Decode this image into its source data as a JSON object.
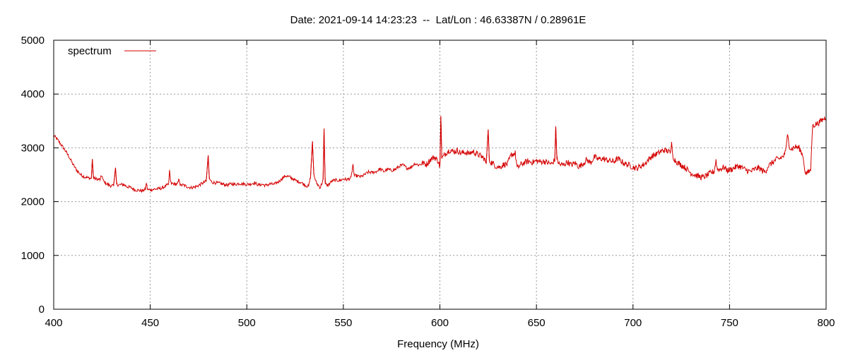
{
  "chart_data": {
    "type": "line",
    "title": "Date: 2021-09-14 14:23:23  --  Lat/Lon : 46.63387N / 0.28961E",
    "xlabel": "Frequency (MHz)",
    "ylabel": "",
    "xlim": [
      400,
      800
    ],
    "ylim": [
      0,
      5000
    ],
    "xticks": [
      400,
      450,
      500,
      550,
      600,
      650,
      700,
      750,
      800
    ],
    "yticks": [
      0,
      1000,
      2000,
      3000,
      4000,
      5000
    ],
    "grid": true,
    "legend_position": "top-left",
    "color": "#d40000",
    "series": [
      {
        "name": "spectrum",
        "points": [
          [
            400,
            3230
          ],
          [
            402,
            3150
          ],
          [
            404,
            3050
          ],
          [
            406,
            2950
          ],
          [
            408,
            2830
          ],
          [
            410,
            2690
          ],
          [
            412,
            2580
          ],
          [
            414,
            2500
          ],
          [
            416,
            2460
          ],
          [
            418,
            2440
          ],
          [
            419.5,
            2430
          ],
          [
            420,
            2790
          ],
          [
            420.6,
            2440
          ],
          [
            422,
            2420
          ],
          [
            424,
            2410
          ],
          [
            425,
            2490
          ],
          [
            425.6,
            2390
          ],
          [
            427,
            2340
          ],
          [
            429,
            2300
          ],
          [
            431,
            2290
          ],
          [
            432,
            2630
          ],
          [
            432.6,
            2320
          ],
          [
            434,
            2310
          ],
          [
            436,
            2320
          ],
          [
            438,
            2280
          ],
          [
            440,
            2260
          ],
          [
            442,
            2220
          ],
          [
            444,
            2210
          ],
          [
            446,
            2200
          ],
          [
            447.5,
            2230
          ],
          [
            448,
            2350
          ],
          [
            448.6,
            2220
          ],
          [
            450,
            2220
          ],
          [
            452,
            2230
          ],
          [
            454,
            2240
          ],
          [
            456,
            2250
          ],
          [
            458,
            2290
          ],
          [
            459.5,
            2320
          ],
          [
            460,
            2590
          ],
          [
            460.6,
            2340
          ],
          [
            462,
            2330
          ],
          [
            464,
            2320
          ],
          [
            465,
            2420
          ],
          [
            465.6,
            2300
          ],
          [
            467,
            2310
          ],
          [
            469,
            2280
          ],
          [
            471,
            2260
          ],
          [
            473,
            2270
          ],
          [
            475,
            2300
          ],
          [
            477,
            2340
          ],
          [
            479,
            2380
          ],
          [
            480,
            2860
          ],
          [
            480.6,
            2420
          ],
          [
            482,
            2360
          ],
          [
            484,
            2350
          ],
          [
            486,
            2340
          ],
          [
            488,
            2320
          ],
          [
            490,
            2310
          ],
          [
            492,
            2330
          ],
          [
            494,
            2320
          ],
          [
            496,
            2340
          ],
          [
            498,
            2330
          ],
          [
            500,
            2320
          ],
          [
            502,
            2330
          ],
          [
            504,
            2350
          ],
          [
            506,
            2310
          ],
          [
            508,
            2320
          ],
          [
            510,
            2300
          ],
          [
            512,
            2330
          ],
          [
            514,
            2320
          ],
          [
            516,
            2360
          ],
          [
            518,
            2420
          ],
          [
            520,
            2480
          ],
          [
            522,
            2460
          ],
          [
            524,
            2420
          ],
          [
            526,
            2380
          ],
          [
            528,
            2360
          ],
          [
            530,
            2310
          ],
          [
            532,
            2280
          ],
          [
            533,
            2460
          ],
          [
            534,
            3120
          ],
          [
            534.7,
            2500
          ],
          [
            536,
            2350
          ],
          [
            538,
            2260
          ],
          [
            539.5,
            2400
          ],
          [
            540,
            3360
          ],
          [
            540.6,
            2330
          ],
          [
            542,
            2300
          ],
          [
            544,
            2380
          ],
          [
            546,
            2400
          ],
          [
            548,
            2390
          ],
          [
            550,
            2420
          ],
          [
            552,
            2410
          ],
          [
            554,
            2440
          ],
          [
            555,
            2700
          ],
          [
            555.6,
            2480
          ],
          [
            557,
            2480
          ],
          [
            559,
            2460
          ],
          [
            561,
            2500
          ],
          [
            563,
            2550
          ],
          [
            565,
            2540
          ],
          [
            567,
            2560
          ],
          [
            569,
            2610
          ],
          [
            571,
            2560
          ],
          [
            573,
            2600
          ],
          [
            575,
            2580
          ],
          [
            577,
            2600
          ],
          [
            579,
            2660
          ],
          [
            581,
            2680
          ],
          [
            583,
            2620
          ],
          [
            585,
            2640
          ],
          [
            587,
            2710
          ],
          [
            589,
            2680
          ],
          [
            591,
            2720
          ],
          [
            593,
            2690
          ],
          [
            595,
            2780
          ],
          [
            597,
            2830
          ],
          [
            599,
            2760
          ],
          [
            600,
            2650
          ],
          [
            600.5,
            3590
          ],
          [
            601,
            2800
          ],
          [
            603,
            2900
          ],
          [
            605,
            2960
          ],
          [
            607,
            2930
          ],
          [
            609,
            2950
          ],
          [
            611,
            2900
          ],
          [
            613,
            2920
          ],
          [
            615,
            2890
          ],
          [
            617,
            2930
          ],
          [
            619,
            2890
          ],
          [
            621,
            2850
          ],
          [
            623,
            2800
          ],
          [
            624,
            2700
          ],
          [
            625,
            3340
          ],
          [
            625.6,
            2760
          ],
          [
            627,
            2720
          ],
          [
            629,
            2660
          ],
          [
            631,
            2640
          ],
          [
            633,
            2690
          ],
          [
            635,
            2700
          ],
          [
            637,
            2870
          ],
          [
            639,
            2900
          ],
          [
            640,
            2620
          ],
          [
            642,
            2690
          ],
          [
            644,
            2730
          ],
          [
            646,
            2750
          ],
          [
            648,
            2730
          ],
          [
            650,
            2760
          ],
          [
            652,
            2740
          ],
          [
            654,
            2750
          ],
          [
            656,
            2720
          ],
          [
            658,
            2700
          ],
          [
            659.5,
            2780
          ],
          [
            660,
            3400
          ],
          [
            660.6,
            2780
          ],
          [
            662,
            2690
          ],
          [
            664,
            2680
          ],
          [
            666,
            2740
          ],
          [
            668,
            2680
          ],
          [
            670,
            2720
          ],
          [
            672,
            2650
          ],
          [
            674,
            2700
          ],
          [
            676,
            2780
          ],
          [
            678,
            2720
          ],
          [
            680,
            2830
          ],
          [
            682,
            2790
          ],
          [
            684,
            2800
          ],
          [
            686,
            2780
          ],
          [
            688,
            2760
          ],
          [
            690,
            2740
          ],
          [
            692,
            2800
          ],
          [
            694,
            2750
          ],
          [
            696,
            2700
          ],
          [
            698,
            2680
          ],
          [
            700,
            2640
          ],
          [
            702,
            2620
          ],
          [
            704,
            2660
          ],
          [
            706,
            2700
          ],
          [
            708,
            2780
          ],
          [
            710,
            2850
          ],
          [
            712,
            2880
          ],
          [
            714,
            2920
          ],
          [
            716,
            2960
          ],
          [
            718,
            2940
          ],
          [
            719.5,
            2900
          ],
          [
            720,
            3110
          ],
          [
            720.6,
            2850
          ],
          [
            722,
            2760
          ],
          [
            724,
            2700
          ],
          [
            726,
            2660
          ],
          [
            728,
            2600
          ],
          [
            730,
            2530
          ],
          [
            732,
            2500
          ],
          [
            734,
            2470
          ],
          [
            736,
            2450
          ],
          [
            738,
            2480
          ],
          [
            740,
            2530
          ],
          [
            742,
            2560
          ],
          [
            743,
            2770
          ],
          [
            743.6,
            2600
          ],
          [
            745,
            2600
          ],
          [
            747,
            2640
          ],
          [
            749,
            2580
          ],
          [
            751,
            2600
          ],
          [
            753,
            2640
          ],
          [
            755,
            2660
          ],
          [
            757,
            2620
          ],
          [
            759,
            2580
          ],
          [
            761,
            2560
          ],
          [
            763,
            2600
          ],
          [
            765,
            2630
          ],
          [
            767,
            2580
          ],
          [
            768.5,
            2550
          ],
          [
            770,
            2660
          ],
          [
            772,
            2720
          ],
          [
            774,
            2780
          ],
          [
            776,
            2800
          ],
          [
            778,
            2850
          ],
          [
            779,
            2920
          ],
          [
            780,
            3250
          ],
          [
            780.8,
            3050
          ],
          [
            782,
            2980
          ],
          [
            784,
            3020
          ],
          [
            786,
            3000
          ],
          [
            788,
            2860
          ],
          [
            789,
            2560
          ],
          [
            790,
            2530
          ],
          [
            791,
            2550
          ],
          [
            792,
            2600
          ],
          [
            793,
            3400
          ],
          [
            794,
            3430
          ],
          [
            796,
            3460
          ],
          [
            798,
            3520
          ],
          [
            800,
            3570
          ]
        ]
      }
    ]
  }
}
